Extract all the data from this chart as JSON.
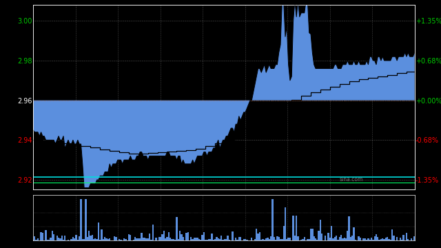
{
  "bg_color": "#000000",
  "price_min": 2.915,
  "price_max": 3.008,
  "prev_close": 2.96,
  "y_ticks_left": [
    2.92,
    2.94,
    2.96,
    2.98,
    3.0
  ],
  "y_ticks_right": [
    "-1.35%",
    "-0.68%",
    "+0.00%",
    "+0.68%",
    "+1.35%"
  ],
  "num_vgrid": 9,
  "fill_color": "#5b8fde",
  "sina_text": "sina.com",
  "watermark_color": "#888888"
}
